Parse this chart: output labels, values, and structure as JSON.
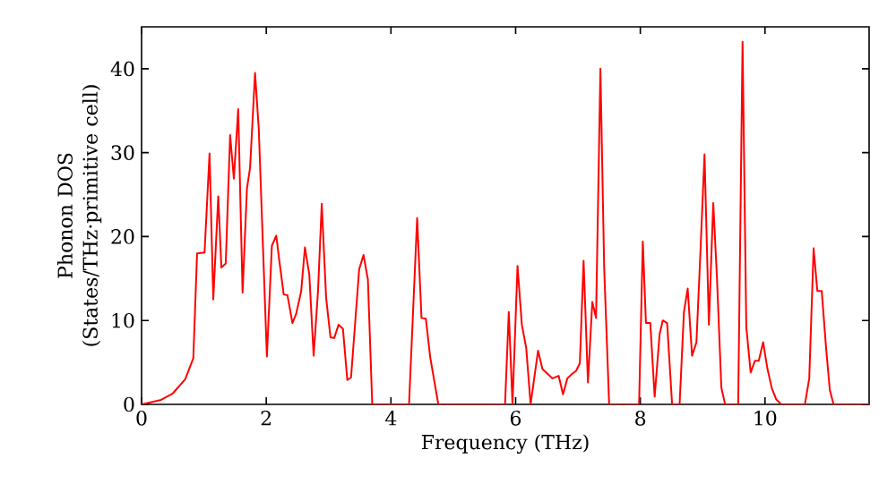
{
  "chart_data": {
    "type": "line",
    "xlabel": "Frequency (THz)",
    "ylabel": "Phonon DOS (States/THz·primitive cell)",
    "x": [
      0,
      0.3,
      0.5,
      0.7,
      0.83,
      0.89,
      1.01,
      1.09,
      1.15,
      1.23,
      1.28,
      1.35,
      1.42,
      1.48,
      1.55,
      1.62,
      1.69,
      1.74,
      1.82,
      1.88,
      2.01,
      2.09,
      2.16,
      2.21,
      2.28,
      2.34,
      2.42,
      2.48,
      2.56,
      2.62,
      2.69,
      2.76,
      2.83,
      2.89,
      2.96,
      3.03,
      3.09,
      3.16,
      3.23,
      3.3,
      3.36,
      3.49,
      3.56,
      3.63,
      3.7,
      4.29,
      4.42,
      4.49,
      4.56,
      4.63,
      4.76,
      5.83,
      5.89,
      5.95,
      6.03,
      6.1,
      6.17,
      6.24,
      6.36,
      6.43,
      6.49,
      6.59,
      6.69,
      6.76,
      6.83,
      6.9,
      6.97,
      7.03,
      7.09,
      7.16,
      7.23,
      7.29,
      7.36,
      7.42,
      7.5,
      7.98,
      8.04,
      8.09,
      8.16,
      8.23,
      8.31,
      8.36,
      8.43,
      8.51,
      8.63,
      8.7,
      8.76,
      8.83,
      8.9,
      8.96,
      9.03,
      9.1,
      9.17,
      9.23,
      9.3,
      9.36,
      9.57,
      9.64,
      9.7,
      9.77,
      9.84,
      9.9,
      9.97,
      10.04,
      10.11,
      10.18,
      10.26,
      10.64,
      10.71,
      10.78,
      10.84,
      10.91,
      10.98,
      11.04,
      11.1,
      11.67
    ],
    "series": [
      {
        "color": "#ff0000",
        "values": [
          0,
          0.5,
          1.3,
          3,
          5.5,
          18,
          18.1,
          29.9,
          12.5,
          24.8,
          16.3,
          16.8,
          32.1,
          26.9,
          35.2,
          13.3,
          25.7,
          28.2,
          39.5,
          32.8,
          5.7,
          18.9,
          20.1,
          17.1,
          13.1,
          13,
          9.7,
          10.8,
          13.5,
          18.7,
          15.5,
          5.8,
          13.5,
          23.9,
          12.7,
          8,
          7.9,
          9.5,
          9,
          2.9,
          3.2,
          16.1,
          17.8,
          14.9,
          0,
          0,
          22.2,
          10.3,
          10.2,
          5.6,
          0,
          0,
          11,
          0,
          16.5,
          9.5,
          6.7,
          0,
          6.4,
          4.2,
          3.8,
          3.1,
          3.4,
          1.2,
          3.1,
          3.6,
          4,
          4.9,
          17.1,
          2.6,
          12.2,
          10.3,
          40,
          16.3,
          0,
          0,
          19.4,
          9.7,
          9.7,
          0.9,
          8.4,
          10,
          9.7,
          0,
          0,
          11,
          13.8,
          5.8,
          7.4,
          17.4,
          29.8,
          9.5,
          24,
          15,
          2,
          0,
          0,
          43.2,
          9.2,
          3.8,
          5.2,
          5.2,
          7.4,
          4.2,
          1.9,
          0.6,
          0,
          0,
          3.1,
          18.6,
          13.5,
          13.5,
          6.7,
          1.7,
          0,
          0
        ]
      }
    ],
    "xlim": [
      0,
      11.67
    ],
    "ylim": [
      0,
      45
    ],
    "xticks": [
      0,
      2,
      4,
      6,
      8,
      10
    ],
    "yticks": [
      0,
      10,
      20,
      30,
      40
    ],
    "grid": false,
    "marker": "none",
    "line_style": "solid"
  }
}
